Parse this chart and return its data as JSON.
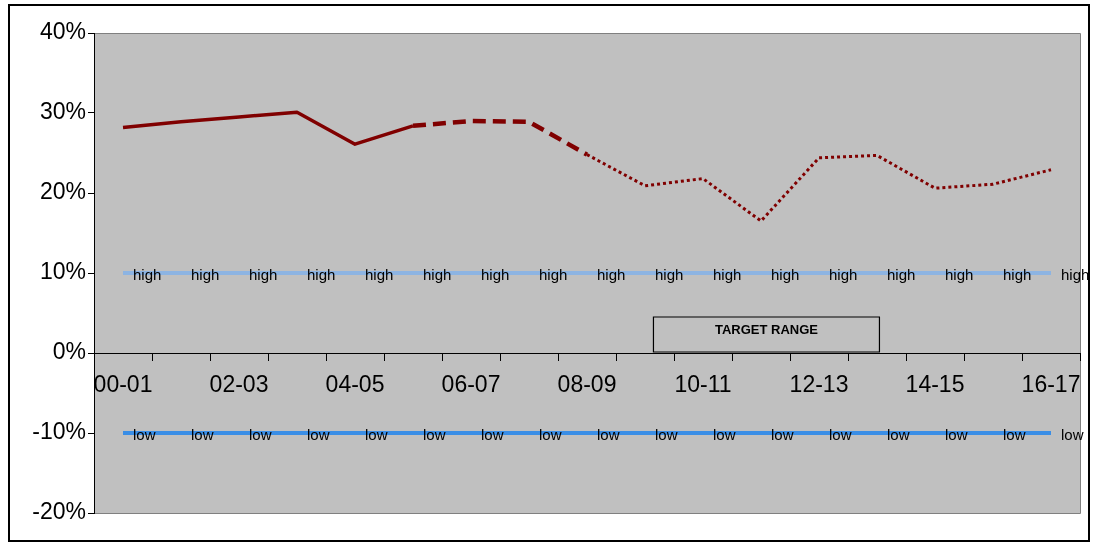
{
  "chart_data": {
    "type": "line",
    "categories": [
      "00-01",
      null,
      "02-03",
      null,
      "04-05",
      null,
      "06-07",
      null,
      "08-09",
      null,
      "10-11",
      null,
      "12-13",
      null,
      "14-15",
      null,
      "16-17"
    ],
    "ylim": [
      -20,
      40
    ],
    "yticks": [
      {
        "value": -20,
        "label": "-20%"
      },
      {
        "value": -10,
        "label": "-10%"
      },
      {
        "value": 0,
        "label": "0%"
      },
      {
        "value": 10,
        "label": "10%"
      },
      {
        "value": 20,
        "label": "20%"
      },
      {
        "value": 30,
        "label": "30%"
      },
      {
        "value": 40,
        "label": "40%"
      }
    ],
    "grid": false,
    "legend": false,
    "marker": "none",
    "series": [
      {
        "color": "#800000",
        "line_style": "solid",
        "values": [
          28.2,
          28.9,
          29.5,
          30.1,
          26.1,
          28.4,
          null,
          null,
          null,
          null,
          null,
          null,
          null,
          null,
          null,
          null,
          null
        ]
      },
      {
        "color": "#800000",
        "line_style": "dashed",
        "values": [
          null,
          null,
          null,
          null,
          null,
          28.4,
          29.0,
          28.9,
          24.8,
          null,
          null,
          null,
          null,
          null,
          null,
          null,
          null
        ]
      },
      {
        "color": "#800000",
        "line_style": "dotted",
        "values": [
          null,
          null,
          null,
          null,
          null,
          null,
          null,
          null,
          24.8,
          20.9,
          21.8,
          16.5,
          24.4,
          24.7,
          20.6,
          21.1,
          22.9
        ]
      },
      {
        "color": "#8db4e2",
        "line_style": "solid",
        "values": [
          10,
          10,
          10,
          10,
          10,
          10,
          10,
          10,
          10,
          10,
          10,
          10,
          10,
          10,
          10,
          10,
          10
        ],
        "value_labels": [
          "high",
          "high",
          "high",
          "high",
          "high",
          "high",
          "high",
          "high",
          "high",
          "high",
          "high",
          "high",
          "high",
          "high",
          "high",
          "high",
          "high"
        ]
      },
      {
        "color": "#3a8ee6",
        "line_style": "solid",
        "values": [
          -10,
          -10,
          -10,
          -10,
          -10,
          -10,
          -10,
          -10,
          -10,
          -10,
          -10,
          -10,
          -10,
          -10,
          -10,
          -10,
          -10
        ],
        "value_labels": [
          "low",
          "low",
          "low",
          "low",
          "low",
          "low",
          "low",
          "low",
          "low",
          "low",
          "low",
          "low",
          "low",
          "low",
          "low",
          "low",
          "low"
        ]
      }
    ],
    "annotations": [
      "TARGET RANGE"
    ]
  }
}
